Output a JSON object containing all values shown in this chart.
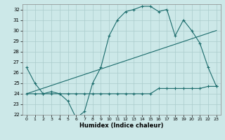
{
  "xlabel": "Humidex (Indice chaleur)",
  "xlim": [
    -0.5,
    23.5
  ],
  "ylim": [
    22,
    32.5
  ],
  "yticks": [
    22,
    23,
    24,
    25,
    26,
    27,
    28,
    29,
    30,
    31,
    32
  ],
  "xticks": [
    0,
    1,
    2,
    3,
    4,
    5,
    6,
    7,
    8,
    9,
    10,
    11,
    12,
    13,
    14,
    15,
    16,
    17,
    18,
    19,
    20,
    21,
    22,
    23
  ],
  "background_color": "#cce8e8",
  "grid_color": "#aacccc",
  "line_color": "#1a6b6b",
  "line1_x": [
    0,
    1,
    2,
    3,
    4,
    5,
    6,
    7,
    8,
    9,
    10,
    11,
    12,
    13,
    14,
    15,
    16,
    17,
    18,
    19,
    20,
    21,
    22,
    23
  ],
  "line1_y": [
    26.5,
    25.0,
    24.0,
    24.2,
    24.0,
    23.3,
    21.7,
    22.3,
    25.0,
    26.5,
    29.5,
    31.0,
    31.8,
    32.0,
    32.3,
    32.3,
    31.8,
    32.0,
    29.5,
    31.0,
    30.0,
    28.8,
    26.5,
    24.7
  ],
  "line2_x": [
    0,
    1,
    2,
    3,
    4,
    5,
    6,
    7,
    8,
    9,
    10,
    11,
    12,
    13,
    14,
    15,
    16,
    17,
    18,
    19,
    20,
    21,
    22,
    23
  ],
  "line2_y": [
    24.0,
    24.0,
    24.0,
    24.0,
    24.0,
    24.0,
    24.0,
    24.0,
    24.0,
    24.0,
    24.0,
    24.0,
    24.0,
    24.0,
    24.0,
    24.0,
    24.5,
    24.5,
    24.5,
    24.5,
    24.5,
    24.5,
    24.7,
    24.7
  ],
  "line3_x": [
    0,
    23
  ],
  "line3_y": [
    24.0,
    30.0
  ]
}
